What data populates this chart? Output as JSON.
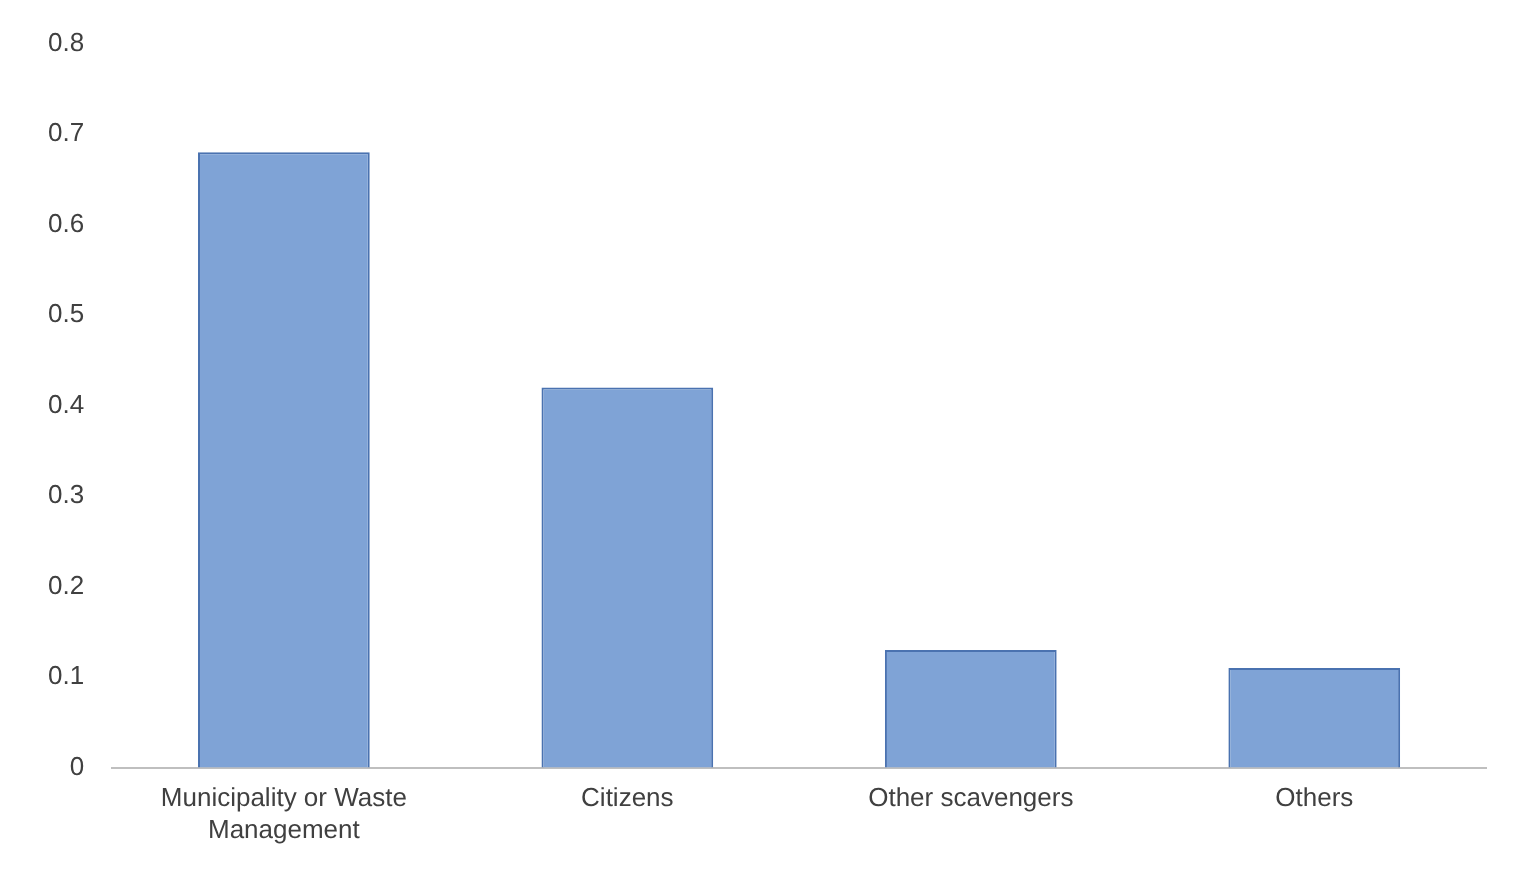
{
  "chart_data": {
    "type": "bar",
    "categories": [
      "Municipality or Waste Management",
      "Citizens",
      "Other scavengers",
      "Others"
    ],
    "values": [
      0.68,
      0.42,
      0.13,
      0.11
    ],
    "color": "#7fa3d6",
    "ylim": [
      0,
      0.8
    ],
    "yticks": [
      0,
      0.1,
      0.2,
      0.3,
      0.4,
      0.5,
      0.6,
      0.7,
      0.8
    ],
    "grid": false,
    "legend": false
  }
}
